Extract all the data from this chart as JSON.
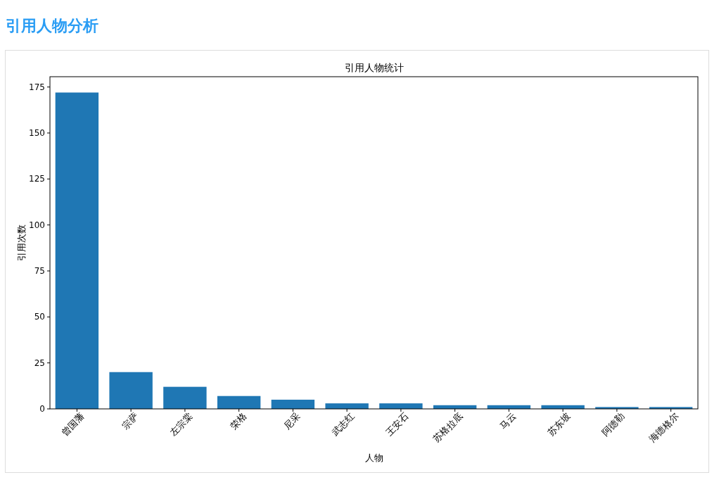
{
  "chart_data": {
    "type": "bar",
    "title": "引用人物分析",
    "subtitle": "引用人物统计",
    "xlabel": "人物",
    "ylabel": "引用次数",
    "categories": [
      "曾国藩",
      "宗萨",
      "左宗棠",
      "荣格",
      "尼采",
      "武志红",
      "王安石",
      "苏格拉底",
      "马云",
      "苏东坡",
      "阿德勒",
      "海德格尔"
    ],
    "values": [
      172,
      20,
      12,
      7,
      5,
      3,
      3,
      2,
      2,
      2,
      1,
      1
    ],
    "color": "#1f77b4",
    "ylim": [
      0,
      180.6
    ],
    "yticks": [
      0,
      25,
      50,
      75,
      100,
      125,
      150,
      175
    ],
    "grid": false
  }
}
